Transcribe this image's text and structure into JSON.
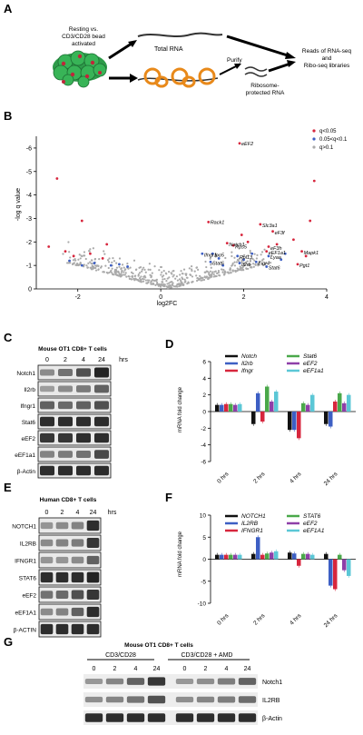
{
  "panel_A": {
    "letter": "A",
    "cells_label": "Resting vs. CD3/CD28 bead activated",
    "total_rna": "Total RNA",
    "purify": "Purify",
    "protected": "Ribosome-protected RNA",
    "reads": "Reads of RNA-seq and Ribo-seq libraries",
    "colors": {
      "cell": "#2e9b4a",
      "ribosome": "#e8891a",
      "dot": "#c0263a"
    }
  },
  "panel_B": {
    "letter": "B",
    "chart_data": {
      "type": "scatter",
      "xlabel": "log2FC",
      "ylabel": "-log q value",
      "xlim": [
        -3,
        4
      ],
      "ylim": [
        0,
        -6.5
      ],
      "xticks": [
        "-2",
        "0",
        "2",
        "4"
      ],
      "yticks": [
        "-6",
        "-5",
        "-4",
        "-3",
        "-2",
        "-1",
        "0"
      ],
      "legend": [
        {
          "name": "q<0.05",
          "color": "#d7263d"
        },
        {
          "name": "0.05<q<0.1",
          "color": "#3d5fc4"
        },
        {
          "name": "q>0.1",
          "color": "#aaaaaa"
        }
      ],
      "labeled_points": [
        {
          "label": "eEF2",
          "x": 1.9,
          "y": -6.2
        },
        {
          "label": "Rack1",
          "x": 1.15,
          "y": -2.85
        },
        {
          "label": "Slc3a1",
          "x": 2.4,
          "y": -2.7
        },
        {
          "label": "eF3f",
          "x": 2.7,
          "y": -2.4
        },
        {
          "label": "Notch1",
          "x": 1.6,
          "y": -1.9
        },
        {
          "label": "Rps5",
          "x": 1.75,
          "y": -1.8
        },
        {
          "label": "eF3h",
          "x": 2.6,
          "y": -1.75
        },
        {
          "label": "eEF1a1",
          "x": 2.55,
          "y": -1.55
        },
        {
          "label": "Mapk1",
          "x": 3.4,
          "y": -1.55
        },
        {
          "label": "Ifngr1",
          "x": 1.0,
          "y": -1.45
        },
        {
          "label": "Ipo5",
          "x": 1.25,
          "y": -1.45
        },
        {
          "label": "Rpl13",
          "x": 1.85,
          "y": -1.35
        },
        {
          "label": "Lyaa",
          "x": 2.6,
          "y": -1.35
        },
        {
          "label": "Stat6",
          "x": 1.2,
          "y": -1.1
        },
        {
          "label": "Il2rb",
          "x": 1.9,
          "y": -1.05
        },
        {
          "label": "Eigr4",
          "x": 2.3,
          "y": -1.1
        },
        {
          "label": "Stat6",
          "x": 2.55,
          "y": -0.9
        },
        {
          "label": "Pgt1",
          "x": 3.3,
          "y": -1.0
        }
      ]
    }
  },
  "panel_C": {
    "letter": "C",
    "title": "Mouse OT1 CD8+ T cells",
    "timepoints": [
      "0",
      "2",
      "4",
      "24",
      "hrs"
    ],
    "rows": [
      "Notch1",
      "Il2rb",
      "Ifngr1",
      "Stat6",
      "eEF2",
      "eEF1a1",
      "β-Actin"
    ],
    "intensities": [
      [
        0.35,
        0.5,
        0.7,
        0.95
      ],
      [
        0.25,
        0.35,
        0.45,
        0.6
      ],
      [
        0.6,
        0.55,
        0.6,
        0.7
      ],
      [
        0.9,
        0.9,
        0.9,
        0.9
      ],
      [
        0.85,
        0.85,
        0.9,
        0.9
      ],
      [
        0.4,
        0.45,
        0.5,
        0.75
      ],
      [
        0.9,
        0.9,
        0.9,
        0.9
      ]
    ]
  },
  "panel_D": {
    "letter": "D",
    "chart_data": {
      "type": "bar",
      "ylabel": "mRNA fold change",
      "categories": [
        "0 hrs",
        "2 hrs",
        "4 hrs",
        "24 hrs"
      ],
      "ylim": [
        -6,
        6
      ],
      "yticks": [
        "6",
        "4",
        "2",
        "0",
        "-2",
        "-4",
        "-6"
      ],
      "series": [
        {
          "name": "Notch",
          "color": "#111111",
          "values": [
            0.8,
            -1.5,
            -2.2,
            -1.5
          ]
        },
        {
          "name": "Il2rb",
          "color": "#3d5fc4",
          "values": [
            0.8,
            2.2,
            -2.2,
            -1.8
          ]
        },
        {
          "name": "Ifngr",
          "color": "#d7263d",
          "values": [
            0.9,
            -1.2,
            -3.2,
            1.2
          ]
        },
        {
          "name": "Stat6",
          "color": "#4aa84a",
          "values": [
            0.9,
            3.0,
            1.0,
            2.2
          ]
        },
        {
          "name": "eEF2",
          "color": "#8e3fa8",
          "values": [
            0.8,
            1.2,
            0.8,
            1.0
          ]
        },
        {
          "name": "eEF1a1",
          "color": "#5bc7d6",
          "values": [
            0.9,
            2.4,
            2.0,
            2.0
          ]
        }
      ]
    }
  },
  "panel_E": {
    "letter": "E",
    "title": "Human CD8+ T cells",
    "timepoints": [
      "0",
      "2",
      "4",
      "24",
      "hrs"
    ],
    "rows": [
      "NOTCH1",
      "IL2RB",
      "IFNGR1",
      "STAT6",
      "eEF2",
      "eEF1A1",
      "β-ACTIN"
    ],
    "intensities": [
      [
        0.3,
        0.35,
        0.4,
        0.9
      ],
      [
        0.35,
        0.4,
        0.45,
        0.85
      ],
      [
        0.3,
        0.3,
        0.35,
        0.6
      ],
      [
        0.9,
        0.9,
        0.9,
        0.95
      ],
      [
        0.5,
        0.55,
        0.7,
        0.85
      ],
      [
        0.35,
        0.4,
        0.6,
        0.9
      ],
      [
        0.9,
        0.9,
        0.9,
        0.9
      ]
    ]
  },
  "panel_F": {
    "letter": "F",
    "chart_data": {
      "type": "bar",
      "ylabel": "mRNA fold change",
      "categories": [
        "0 hrs",
        "2 hrs",
        "4 hrs",
        "24 hrs"
      ],
      "ylim": [
        -10,
        10
      ],
      "yticks": [
        "10",
        "5",
        "0",
        "-5",
        "-10"
      ],
      "series": [
        {
          "name": "NOTCH1",
          "color": "#111111",
          "values": [
            1.0,
            1.2,
            1.5,
            1.2
          ]
        },
        {
          "name": "IL2RB",
          "color": "#3d5fc4",
          "values": [
            1.0,
            5.0,
            1.3,
            -6.0
          ]
        },
        {
          "name": "IFNGR1",
          "color": "#d7263d",
          "values": [
            1.0,
            1.0,
            -1.5,
            -6.8
          ]
        },
        {
          "name": "STAT6",
          "color": "#4aa84a",
          "values": [
            1.0,
            1.3,
            1.2,
            1.0
          ]
        },
        {
          "name": "eEF2",
          "color": "#8e3fa8",
          "values": [
            1.0,
            1.5,
            1.2,
            -2.5
          ]
        },
        {
          "name": "eEF1A1",
          "color": "#5bc7d6",
          "values": [
            1.0,
            1.8,
            1.0,
            -3.8
          ]
        }
      ]
    }
  },
  "panel_G": {
    "letter": "G",
    "title": "Mouse OT1 CD8+ T cells",
    "group1": "CD3/CD28",
    "group2": "CD3/CD28 + AMD",
    "timepoints": [
      "0",
      "2",
      "4",
      "24",
      "0",
      "2",
      "4",
      "24"
    ],
    "rows": [
      "Notch1",
      "IL2RB",
      "β-Actin"
    ],
    "intensities": [
      [
        0.3,
        0.4,
        0.6,
        0.85,
        0.3,
        0.35,
        0.45,
        0.6
      ],
      [
        0.35,
        0.4,
        0.5,
        0.7,
        0.35,
        0.4,
        0.45,
        0.55
      ],
      [
        0.9,
        0.9,
        0.9,
        0.9,
        0.9,
        0.9,
        0.9,
        0.9
      ]
    ]
  }
}
